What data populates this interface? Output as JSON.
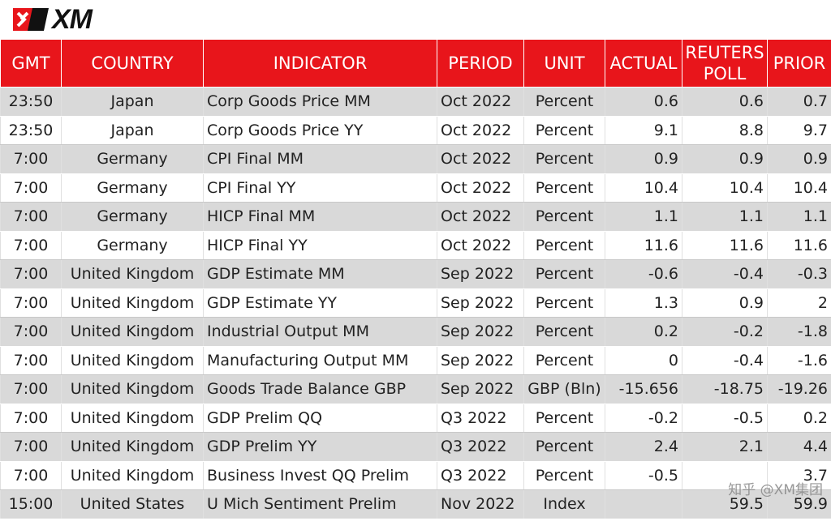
{
  "brand": {
    "logo_text": "XM",
    "colors": {
      "header_red": "#e8151b",
      "row_gray": "#d9d9d9"
    }
  },
  "watermark": "知乎 @XM集团",
  "table": {
    "headers": [
      "GMT",
      "COUNTRY",
      "INDICATOR",
      "PERIOD",
      "UNIT",
      "ACTUAL",
      "REUTERS POLL",
      "PRIOR"
    ],
    "rows": [
      [
        "23:50",
        "Japan",
        "Corp Goods Price MM",
        "Oct 2022",
        "Percent",
        "0.6",
        "0.6",
        "0.7"
      ],
      [
        "23:50",
        "Japan",
        "Corp Goods Price YY",
        "Oct 2022",
        "Percent",
        "9.1",
        "8.8",
        "9.7"
      ],
      [
        "7:00",
        "Germany",
        "CPI Final MM",
        "Oct 2022",
        "Percent",
        "0.9",
        "0.9",
        "0.9"
      ],
      [
        "7:00",
        "Germany",
        "CPI Final YY",
        "Oct 2022",
        "Percent",
        "10.4",
        "10.4",
        "10.4"
      ],
      [
        "7:00",
        "Germany",
        "HICP Final MM",
        "Oct 2022",
        "Percent",
        "1.1",
        "1.1",
        "1.1"
      ],
      [
        "7:00",
        "Germany",
        "HICP Final YY",
        "Oct 2022",
        "Percent",
        "11.6",
        "11.6",
        "11.6"
      ],
      [
        "7:00",
        "United Kingdom",
        "GDP Estimate MM",
        "Sep 2022",
        "Percent",
        "-0.6",
        "-0.4",
        "-0.3"
      ],
      [
        "7:00",
        "United Kingdom",
        "GDP Estimate YY",
        "Sep 2022",
        "Percent",
        "1.3",
        "0.9",
        "2"
      ],
      [
        "7:00",
        "United Kingdom",
        "Industrial Output MM",
        "Sep 2022",
        "Percent",
        "0.2",
        "-0.2",
        "-1.8"
      ],
      [
        "7:00",
        "United Kingdom",
        "Manufacturing Output MM",
        "Sep 2022",
        "Percent",
        "0",
        "-0.4",
        "-1.6"
      ],
      [
        "7:00",
        "United Kingdom",
        "Goods Trade Balance GBP",
        "Sep 2022",
        "GBP (Bln)",
        "-15.656",
        "-18.75",
        "-19.26"
      ],
      [
        "7:00",
        "United Kingdom",
        "GDP Prelim QQ",
        "Q3 2022",
        "Percent",
        "-0.2",
        "-0.5",
        "0.2"
      ],
      [
        "7:00",
        "United Kingdom",
        "GDP Prelim YY",
        "Q3 2022",
        "Percent",
        "2.4",
        "2.1",
        "4.4"
      ],
      [
        "7:00",
        "United Kingdom",
        "Business Invest QQ Prelim",
        "Q3 2022",
        "Percent",
        "-0.5",
        "",
        "3.7"
      ],
      [
        "15:00",
        "United States",
        "U Mich Sentiment Prelim",
        "Nov 2022",
        "Index",
        "",
        "59.5",
        "59.9"
      ]
    ]
  }
}
